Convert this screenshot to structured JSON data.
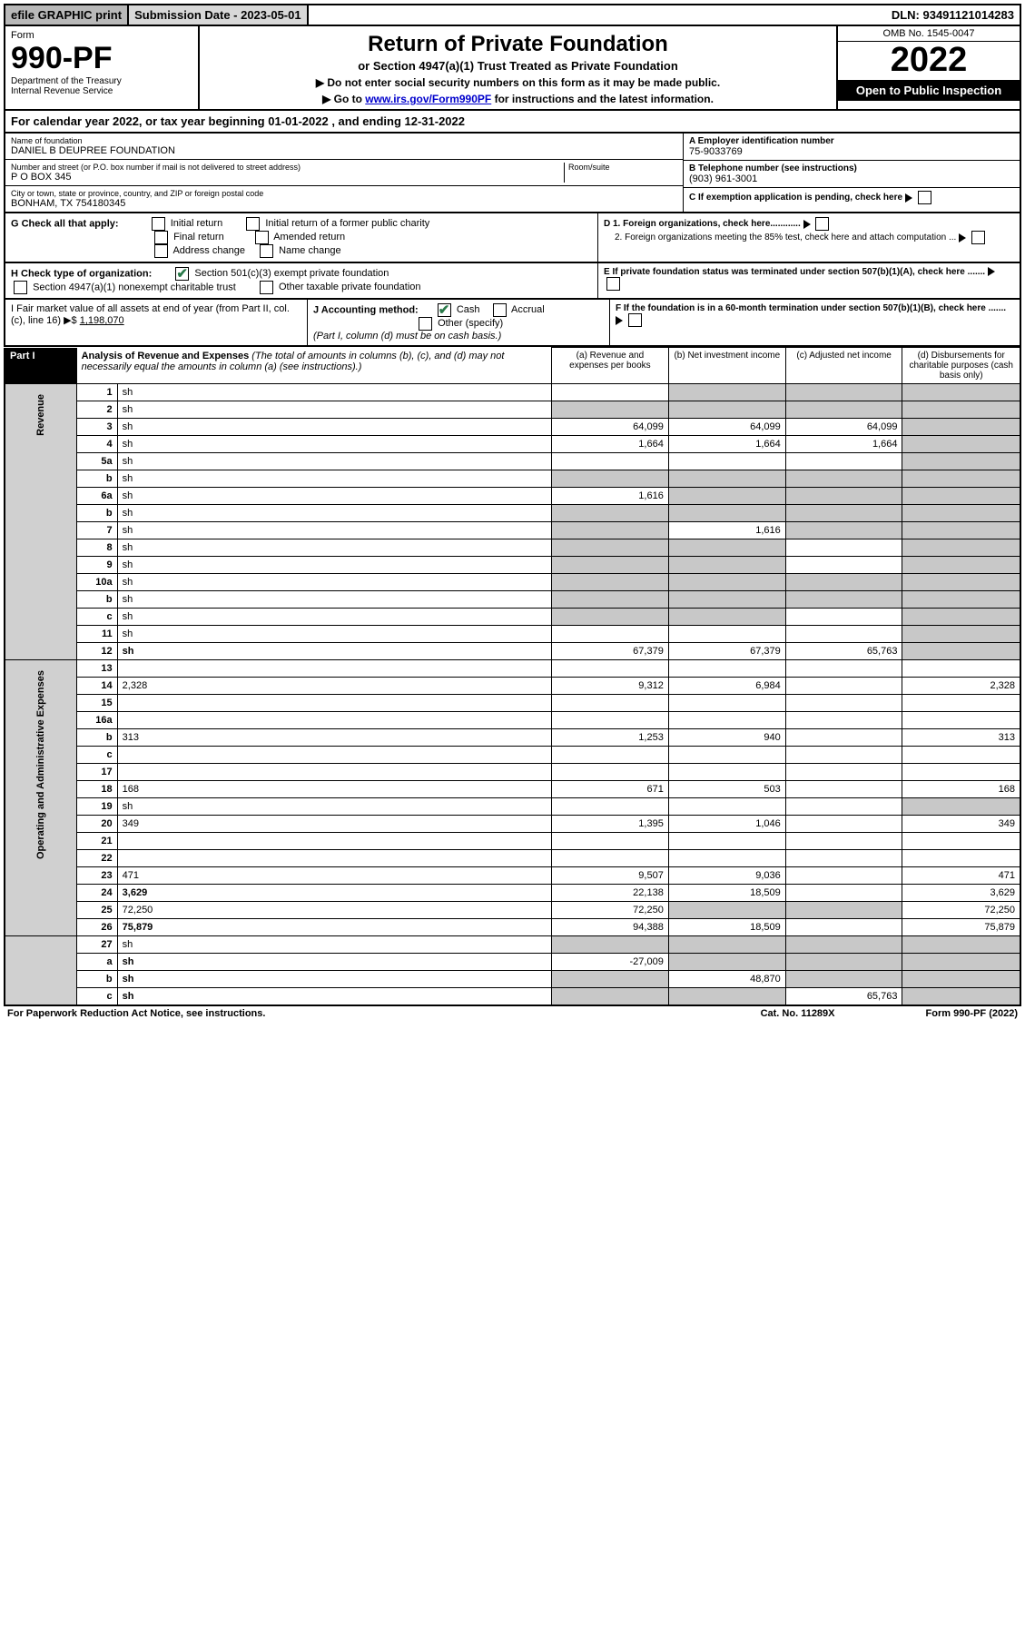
{
  "topbar": {
    "efile": "efile GRAPHIC print",
    "submission": "Submission Date - 2023-05-01",
    "dln": "DLN: 93491121014283"
  },
  "header": {
    "form": "Form",
    "form_number": "990-PF",
    "dept": "Department of the Treasury",
    "irs": "Internal Revenue Service",
    "title": "Return of Private Foundation",
    "subtitle": "or Section 4947(a)(1) Trust Treated as Private Foundation",
    "instr1": "▶ Do not enter social security numbers on this form as it may be made public.",
    "instr2_prefix": "▶ Go to ",
    "instr2_link": "www.irs.gov/Form990PF",
    "instr2_suffix": " for instructions and the latest information.",
    "omb": "OMB No. 1545-0047",
    "year": "2022",
    "open_pub": "Open to Public Inspection"
  },
  "cal_year": "For calendar year 2022, or tax year beginning 01-01-2022                               , and ending 12-31-2022",
  "entity": {
    "name_label": "Name of foundation",
    "name_val": "DANIEL B DEUPREE FOUNDATION",
    "addr_label": "Number and street (or P.O. box number if mail is not delivered to street address)",
    "addr_val": "P O BOX 345",
    "room_label": "Room/suite",
    "city_label": "City or town, state or province, country, and ZIP or foreign postal code",
    "city_val": "BONHAM, TX  754180345",
    "ein_label": "A Employer identification number",
    "ein_val": "75-9033769",
    "phone_label": "B Telephone number (see instructions)",
    "phone_val": "(903) 961-3001",
    "c_label": "C If exemption application is pending, check here"
  },
  "g": {
    "label": "G Check all that apply:",
    "o1": "Initial return",
    "o2": "Initial return of a former public charity",
    "o3": "Final return",
    "o4": "Amended return",
    "o5": "Address change",
    "o6": "Name change",
    "d1": "D 1. Foreign organizations, check here............",
    "d2": "2. Foreign organizations meeting the 85% test, check here and attach computation ...",
    "e": "E  If private foundation status was terminated under section 507(b)(1)(A), check here .......",
    "f": "F  If the foundation is in a 60-month termination under section 507(b)(1)(B), check here ......."
  },
  "h": {
    "label": "H Check type of organization:",
    "o1": "Section 501(c)(3) exempt private foundation",
    "o2": "Section 4947(a)(1) nonexempt charitable trust",
    "o3": "Other taxable private foundation"
  },
  "ij": {
    "i": "I Fair market value of all assets at end of year (from Part II, col. (c), line 16) ▶$ ",
    "i_val": "1,198,070",
    "j": "J Accounting method:",
    "j1": "Cash",
    "j2": "Accrual",
    "j3": "Other (specify)",
    "j_note": "(Part I, column (d) must be on cash basis.)"
  },
  "part1": {
    "label": "Part I",
    "title": "Analysis of Revenue and Expenses",
    "note": " (The total of amounts in columns (b), (c), and (d) may not necessarily equal the amounts in column (a) (see instructions).)",
    "col_a": "(a) Revenue and expenses per books",
    "col_b": "(b) Net investment income",
    "col_c": "(c) Adjusted net income",
    "col_d": "(d) Disbursements for charitable purposes (cash basis only)"
  },
  "side": {
    "rev": "Revenue",
    "exp": "Operating and Administrative Expenses"
  },
  "rows": [
    {
      "n": "1",
      "d": "sh",
      "a": "",
      "b": "sh",
      "c": "sh"
    },
    {
      "n": "2",
      "d": "sh",
      "a": "sh",
      "b": "sh",
      "c": "sh"
    },
    {
      "n": "3",
      "d": "sh",
      "a": "64,099",
      "b": "64,099",
      "c": "64,099"
    },
    {
      "n": "4",
      "d": "sh",
      "a": "1,664",
      "b": "1,664",
      "c": "1,664"
    },
    {
      "n": "5a",
      "d": "sh",
      "a": "",
      "b": "",
      "c": ""
    },
    {
      "n": "b",
      "d": "sh",
      "a": "sh",
      "b": "sh",
      "c": "sh"
    },
    {
      "n": "6a",
      "d": "sh",
      "a": "1,616",
      "b": "sh",
      "c": "sh"
    },
    {
      "n": "b",
      "d": "sh",
      "a": "sh",
      "b": "sh",
      "c": "sh"
    },
    {
      "n": "7",
      "d": "sh",
      "a": "sh",
      "b": "1,616",
      "c": "sh"
    },
    {
      "n": "8",
      "d": "sh",
      "a": "sh",
      "b": "sh",
      "c": ""
    },
    {
      "n": "9",
      "d": "sh",
      "a": "sh",
      "b": "sh",
      "c": ""
    },
    {
      "n": "10a",
      "d": "sh",
      "a": "sh",
      "b": "sh",
      "c": "sh"
    },
    {
      "n": "b",
      "d": "sh",
      "a": "sh",
      "b": "sh",
      "c": "sh"
    },
    {
      "n": "c",
      "d": "sh",
      "a": "sh",
      "b": "sh",
      "c": ""
    },
    {
      "n": "11",
      "d": "sh",
      "a": "",
      "b": "",
      "c": ""
    },
    {
      "n": "12",
      "d": "sh",
      "a": "67,379",
      "b": "67,379",
      "c": "65,763",
      "bold": true
    }
  ],
  "exp_rows": [
    {
      "n": "13",
      "d": "",
      "a": "",
      "b": "",
      "c": ""
    },
    {
      "n": "14",
      "d": "2,328",
      "a": "9,312",
      "b": "6,984",
      "c": ""
    },
    {
      "n": "15",
      "d": "",
      "a": "",
      "b": "",
      "c": ""
    },
    {
      "n": "16a",
      "d": "",
      "a": "",
      "b": "",
      "c": ""
    },
    {
      "n": "b",
      "d": "313",
      "a": "1,253",
      "b": "940",
      "c": ""
    },
    {
      "n": "c",
      "d": "",
      "a": "",
      "b": "",
      "c": ""
    },
    {
      "n": "17",
      "d": "",
      "a": "",
      "b": "",
      "c": ""
    },
    {
      "n": "18",
      "d": "168",
      "a": "671",
      "b": "503",
      "c": ""
    },
    {
      "n": "19",
      "d": "sh",
      "a": "",
      "b": "",
      "c": ""
    },
    {
      "n": "20",
      "d": "349",
      "a": "1,395",
      "b": "1,046",
      "c": ""
    },
    {
      "n": "21",
      "d": "",
      "a": "",
      "b": "",
      "c": ""
    },
    {
      "n": "22",
      "d": "",
      "a": "",
      "b": "",
      "c": ""
    },
    {
      "n": "23",
      "d": "471",
      "a": "9,507",
      "b": "9,036",
      "c": ""
    },
    {
      "n": "24",
      "d": "3,629",
      "a": "22,138",
      "b": "18,509",
      "c": "",
      "bold": true
    },
    {
      "n": "25",
      "d": "72,250",
      "a": "72,250",
      "b": "sh",
      "c": "sh"
    },
    {
      "n": "26",
      "d": "75,879",
      "a": "94,388",
      "b": "18,509",
      "c": "",
      "bold": true
    }
  ],
  "final_rows": [
    {
      "n": "27",
      "d": "sh",
      "a": "sh",
      "b": "sh",
      "c": "sh"
    },
    {
      "n": "a",
      "d": "sh",
      "a": "-27,009",
      "b": "sh",
      "c": "sh",
      "bold": true
    },
    {
      "n": "b",
      "d": "sh",
      "a": "sh",
      "b": "48,870",
      "c": "sh",
      "bold": true
    },
    {
      "n": "c",
      "d": "sh",
      "a": "sh",
      "b": "sh",
      "c": "65,763",
      "bold": true
    }
  ],
  "footer": {
    "left": "For Paperwork Reduction Act Notice, see instructions.",
    "mid": "Cat. No. 11289X",
    "right": "Form 990-PF (2022)"
  }
}
